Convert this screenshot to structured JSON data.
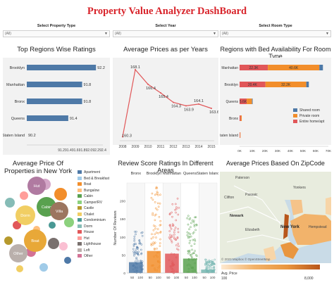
{
  "header": {
    "title": "Property Value Analyzer DashBoard"
  },
  "filters": [
    {
      "label": "Select Property Type",
      "value": "(All)"
    },
    {
      "label": "Select Year",
      "value": "(All)"
    },
    {
      "label": "Select Room Type",
      "value": "(All)"
    }
  ],
  "colors": {
    "accent": "#d8232a",
    "bar_blue": "#4e79a7",
    "line_red": "#e15759",
    "shared_room": "#4e79a7",
    "private_room": "#f28e2b",
    "entire_home": "#e15759"
  },
  "panels": {
    "ratings": "Top Regions Wise Ratings",
    "prices_years": "Average Prices as per Years",
    "bed_availability": "Regions with Bed Availability For Room Type",
    "avg_price_type": "Average Price Of Properties in New York",
    "review_score": "Review Score Ratings In Different Areas",
    "zipcode": "Average Prices Based On ZipCode"
  },
  "chart_data": [
    {
      "type": "bar",
      "orientation": "horizontal",
      "title": "Top Regions Wise Ratings",
      "categories": [
        "Brooklyn",
        "Manhattan",
        "Bronx",
        "Queens",
        "Staten Island"
      ],
      "values": [
        92.2,
        91.8,
        91.8,
        91.4,
        90.2
      ],
      "value_labels": [
        "92.2",
        "91.8",
        "91.8",
        "91.4",
        "90.2"
      ],
      "xlim": [
        90.2,
        92.4
      ],
      "xticks": [
        "91.2",
        "91.4",
        "91.6",
        "91.8",
        "92.0",
        "92.2",
        "92.4"
      ]
    },
    {
      "type": "line",
      "title": "Average Prices as per Years",
      "x": [
        2008,
        2009,
        2010,
        2011,
        2012,
        2013,
        2014,
        2015
      ],
      "values": [
        160.3,
        168.1,
        166.4,
        165.4,
        164.3,
        163.9,
        164.1,
        163.6
      ],
      "value_labels": [
        "160.3",
        "168.1",
        "166.4",
        "165.4",
        "164.3",
        "163.9",
        "164.1",
        "163.6"
      ],
      "ylim": [
        160,
        169
      ],
      "xticks": [
        "2008",
        "2009",
        "2010",
        "2011",
        "2012",
        "2013",
        "2014",
        "2015"
      ]
    },
    {
      "type": "bar",
      "orientation": "horizontal",
      "stacked": true,
      "title": "Regions with Bed Availability For Room Type",
      "categories": [
        "Manhattan",
        "Brooklyn",
        "Queens",
        "Bronx",
        "Staten Island"
      ],
      "series": [
        {
          "name": "Entire home/apt",
          "values": [
            22.3,
            20.4,
            5.6,
            0.9,
            0.4
          ]
        },
        {
          "name": "Private room",
          "values": [
            40.6,
            32.2,
            4.2,
            0.8,
            0.3
          ]
        },
        {
          "name": "Shared room",
          "values": [
            2.8,
            2.0,
            0.5,
            0.1,
            0.05
          ]
        }
      ],
      "value_labels": [
        [
          "22.3K",
          "40.6K",
          ""
        ],
        [
          "20.4K",
          "32.2K",
          ""
        ],
        [
          "5.6K",
          "",
          ""
        ],
        [
          "",
          "",
          ""
        ],
        [
          "",
          "",
          ""
        ]
      ],
      "xlim": [
        0,
        70
      ],
      "xticks": [
        "0K",
        "10K",
        "20K",
        "30K",
        "40K",
        "50K",
        "60K",
        "70K"
      ]
    },
    {
      "type": "bubble",
      "title": "Average Price Of Properties in New York",
      "bubbles": [
        {
          "label": "Hut",
          "color": "#b07aa1"
        },
        {
          "label": "Dorm",
          "color": "#f1ce63"
        },
        {
          "label": "Cabin",
          "color": "#59a14f"
        },
        {
          "label": "Villa",
          "color": "#9c755f"
        },
        {
          "label": "Boat",
          "color": "#e8a838"
        },
        {
          "label": "Other",
          "color": "#bab0ac"
        }
      ],
      "legend": [
        "Apartment",
        "Bed & Breakfast",
        "Boat",
        "Bungalow",
        "Cabin",
        "Camper/RV",
        "Castle",
        "Chalet",
        "Condominium",
        "Dorm",
        "House",
        "Hut",
        "Lighthouse",
        "Loft",
        "Other"
      ]
    },
    {
      "type": "scatter",
      "title": "Review Score Ratings In Different Areas",
      "columns": [
        "Bronx",
        "Brooklyn",
        "Manhattan",
        "Queens",
        "Staten Island"
      ],
      "ylabel": "Number Of Reviews",
      "ylim": [
        0,
        250
      ],
      "yticks": [
        "0",
        "50",
        "100",
        "150",
        "200"
      ],
      "xticks": [
        "50",
        "100",
        "50",
        "100",
        "50",
        "100",
        "50",
        "100",
        "50",
        "100"
      ]
    },
    {
      "type": "map",
      "title": "Average Prices Based On ZipCode",
      "place_labels": [
        "Paterson",
        "Yonkers",
        "Clifton",
        "Passaic",
        "Newark",
        "Elizabeth",
        "New York",
        "Hempstead"
      ],
      "attribution": "© 2023 Mapbox © OpenStreetMap",
      "legend_title": "Avg. Price",
      "legend_min": "100",
      "legend_max": "8,000"
    }
  ]
}
